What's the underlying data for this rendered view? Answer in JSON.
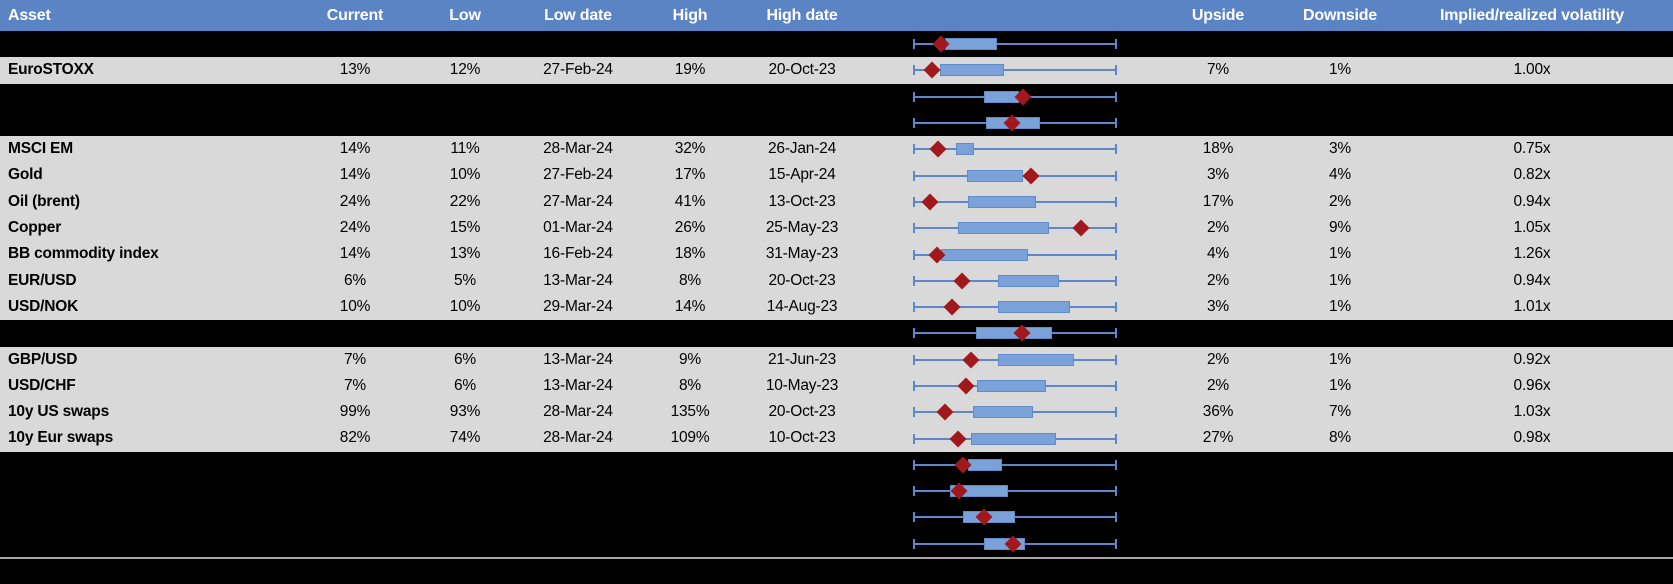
{
  "app": {
    "description": "Asset implied volatility summary table with 12-month range box plots"
  },
  "colors": {
    "header_bg": "#5b84c4",
    "header_text": "#ffffff",
    "row_gray": "#d9d9d9",
    "row_black": "#000000",
    "box_fill": "#7aa2d8",
    "box_border": "#628bc9",
    "whisker_blue": "#5d87c9",
    "marker_red": "#a2191d",
    "separator_gray": "#a6a6a6",
    "text": "#000000"
  },
  "chart_data": {
    "type": "table",
    "title": "",
    "header": {
      "asset": "Asset",
      "current": "Current",
      "low": "Low",
      "low_date": "Low date",
      "high": "High",
      "high_date": "High date",
      "upside": "Upside",
      "downside": "Downside",
      "implied_realized": "Implied/realized volatility"
    },
    "boxplot_note": "Each row shows a horizontal box-whisker of the 12m volatility range (whiskers = low..high normalized 0-1, blue box = interquartile band) with a dark-red diamond marking the current level",
    "rows": [
      {
        "type": "spacer",
        "boxplot": {
          "whisker": [
            0,
            1
          ],
          "box": [
            0.158,
            0.412
          ],
          "marker": 0.137
        }
      },
      {
        "type": "data",
        "asset": "EuroSTOXX",
        "current": "13%",
        "low": "12%",
        "low_date": "27-Feb-24",
        "high": "19%",
        "high_date": "20-Oct-23",
        "upside": "7%",
        "downside": "1%",
        "implied_realized": "1.00x",
        "boxplot": {
          "whisker": [
            0,
            1
          ],
          "box": [
            0.134,
            0.448
          ],
          "marker": 0.093
        }
      },
      {
        "type": "spacer",
        "boxplot": {
          "whisker": [
            0,
            1
          ],
          "box": [
            0.35,
            0.52
          ],
          "marker": 0.539
        }
      },
      {
        "type": "spacer",
        "boxplot": {
          "whisker": [
            0,
            1
          ],
          "box": [
            0.359,
            0.624
          ],
          "marker": 0.485
        }
      },
      {
        "type": "data",
        "asset": "MSCI EM",
        "current": "14%",
        "low": "11%",
        "low_date": "28-Mar-24",
        "high": "32%",
        "high_date": "26-Jan-24",
        "upside": "18%",
        "downside": "3%",
        "implied_realized": "0.75x",
        "boxplot": {
          "whisker": [
            0,
            1
          ],
          "box": [
            0.211,
            0.297
          ],
          "marker": 0.121
        }
      },
      {
        "type": "data",
        "asset": "Gold",
        "current": "14%",
        "low": "10%",
        "low_date": "27-Feb-24",
        "high": "17%",
        "high_date": "15-Apr-24",
        "upside": "3%",
        "downside": "4%",
        "implied_realized": "0.82x",
        "boxplot": {
          "whisker": [
            0,
            1
          ],
          "box": [
            0.265,
            0.537
          ],
          "marker": 0.578
        }
      },
      {
        "type": "data",
        "asset": "Oil (brent)",
        "current": "24%",
        "low": "22%",
        "low_date": "27-Mar-24",
        "high": "41%",
        "high_date": "13-Oct-23",
        "upside": "17%",
        "downside": "2%",
        "implied_realized": "0.94x",
        "boxplot": {
          "whisker": [
            0,
            1
          ],
          "box": [
            0.268,
            0.604
          ],
          "marker": 0.085
        }
      },
      {
        "type": "data",
        "asset": "Copper",
        "current": "24%",
        "low": "15%",
        "low_date": "01-Mar-24",
        "high": "26%",
        "high_date": "25-May-23",
        "upside": "2%",
        "downside": "9%",
        "implied_realized": "1.05x",
        "boxplot": {
          "whisker": [
            0,
            1
          ],
          "box": [
            0.219,
            0.665
          ],
          "marker": 0.825
        }
      },
      {
        "type": "data",
        "asset": "BB commodity index",
        "current": "14%",
        "low": "13%",
        "low_date": "16-Feb-24",
        "high": "18%",
        "high_date": "31-May-23",
        "upside": "4%",
        "downside": "1%",
        "implied_realized": "1.26x",
        "boxplot": {
          "whisker": [
            0,
            1
          ],
          "box": [
            0.139,
            0.564
          ],
          "marker": 0.118
        }
      },
      {
        "type": "data",
        "asset": "EUR/USD",
        "current": "6%",
        "low": "5%",
        "low_date": "13-Mar-24",
        "high": "8%",
        "high_date": "20-Oct-23",
        "upside": "2%",
        "downside": "1%",
        "implied_realized": "0.94x",
        "boxplot": {
          "whisker": [
            0,
            1
          ],
          "box": [
            0.417,
            0.717
          ],
          "marker": 0.24
        }
      },
      {
        "type": "data",
        "asset": "USD/NOK",
        "current": "10%",
        "low": "10%",
        "low_date": "29-Mar-24",
        "high": "14%",
        "high_date": "14-Aug-23",
        "upside": "3%",
        "downside": "1%",
        "implied_realized": "1.01x",
        "boxplot": {
          "whisker": [
            0,
            1
          ],
          "box": [
            0.417,
            0.768
          ],
          "marker": 0.191
        }
      },
      {
        "type": "spacer",
        "boxplot": {
          "whisker": [
            0,
            1
          ],
          "box": [
            0.31,
            0.681
          ],
          "marker": 0.534
        }
      },
      {
        "type": "data",
        "asset": "GBP/USD",
        "current": "7%",
        "low": "6%",
        "low_date": "13-Mar-24",
        "high": "9%",
        "high_date": "21-Jun-23",
        "upside": "2%",
        "downside": "1%",
        "implied_realized": "0.92x",
        "boxplot": {
          "whisker": [
            0,
            1
          ],
          "box": [
            0.417,
            0.787
          ],
          "marker": 0.286
        }
      },
      {
        "type": "data",
        "asset": "USD/CHF",
        "current": "7%",
        "low": "6%",
        "low_date": "13-Mar-24",
        "high": "8%",
        "high_date": "10-May-23",
        "upside": "2%",
        "downside": "1%",
        "implied_realized": "0.96x",
        "boxplot": {
          "whisker": [
            0,
            1
          ],
          "box": [
            0.314,
            0.654
          ],
          "marker": 0.261
        }
      },
      {
        "type": "data",
        "asset": "10y US swaps",
        "current": "99%",
        "low": "93%",
        "low_date": "28-Mar-24",
        "high": "135%",
        "high_date": "20-Oct-23",
        "upside": "36%",
        "downside": "7%",
        "implied_realized": "1.03x",
        "boxplot": {
          "whisker": [
            0,
            1
          ],
          "box": [
            0.292,
            0.586
          ],
          "marker": 0.158
        }
      },
      {
        "type": "data",
        "asset": "10y Eur swaps",
        "current": "82%",
        "low": "74%",
        "low_date": "28-Mar-24",
        "high": "109%",
        "high_date": "10-Oct-23",
        "upside": "27%",
        "downside": "8%",
        "implied_realized": "0.98x",
        "boxplot": {
          "whisker": [
            0,
            1
          ],
          "box": [
            0.286,
            0.702
          ],
          "marker": 0.221
        }
      },
      {
        "type": "spacer",
        "boxplot": {
          "whisker": [
            0,
            1
          ],
          "box": [
            0.268,
            0.436
          ],
          "marker": 0.243
        }
      },
      {
        "type": "spacer",
        "boxplot": {
          "whisker": [
            0,
            1
          ],
          "box": [
            0.183,
            0.466
          ],
          "marker": 0.227
        }
      },
      {
        "type": "spacer",
        "boxplot": {
          "whisker": [
            0,
            1
          ],
          "box": [
            0.243,
            0.498
          ],
          "marker": 0.35
        }
      },
      {
        "type": "spacer",
        "boxplot": {
          "whisker": [
            0,
            1
          ],
          "box": [
            0.349,
            0.55
          ],
          "marker": 0.489
        }
      }
    ]
  }
}
